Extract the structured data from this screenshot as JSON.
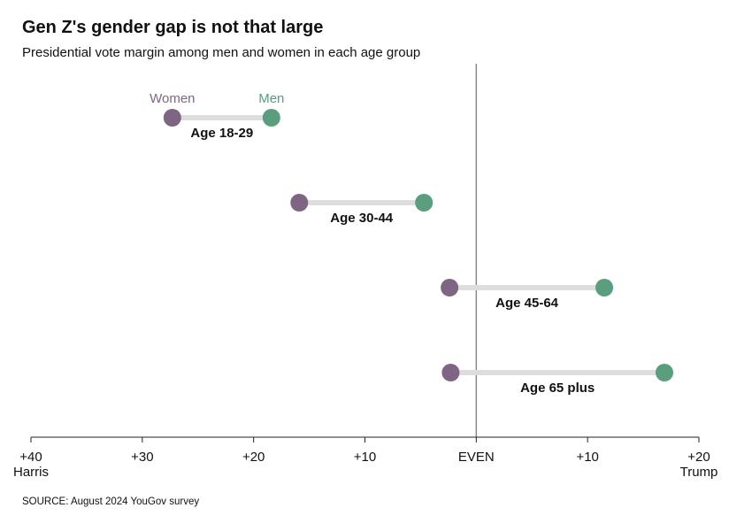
{
  "title": "Gen Z's gender gap is not that large",
  "subtitle": "Presidential vote margin among men and women in each age group",
  "source": "SOURCE: August 2024 YouGov survey",
  "colors": {
    "women": "#7f6584",
    "men": "#5a9e7e",
    "connector": "#dddddd",
    "axis": "#888888"
  },
  "chart_data": {
    "type": "dumbbell",
    "xlim": [
      -40,
      20
    ],
    "x_direction": "negative = Harris margin, positive = Trump margin",
    "x_ticks": [
      {
        "value": -40,
        "label": "+40"
      },
      {
        "value": -30,
        "label": "+30"
      },
      {
        "value": -20,
        "label": "+20"
      },
      {
        "value": -10,
        "label": "+10"
      },
      {
        "value": 0,
        "label": "EVEN"
      },
      {
        "value": 10,
        "label": "+10"
      },
      {
        "value": 20,
        "label": "+20"
      }
    ],
    "x_end_labels": {
      "left": "Harris",
      "right": "Trump"
    },
    "legend": {
      "women": "Women",
      "men": "Men"
    },
    "categories": [
      "Age 18-29",
      "Age 30-44",
      "Age 45-64",
      "Age 65 plus"
    ],
    "series": [
      {
        "name": "Women",
        "values": [
          -27.3,
          -15.9,
          -2.4,
          -2.3
        ]
      },
      {
        "name": "Men",
        "values": [
          -18.4,
          -4.7,
          11.5,
          16.9
        ]
      }
    ]
  }
}
